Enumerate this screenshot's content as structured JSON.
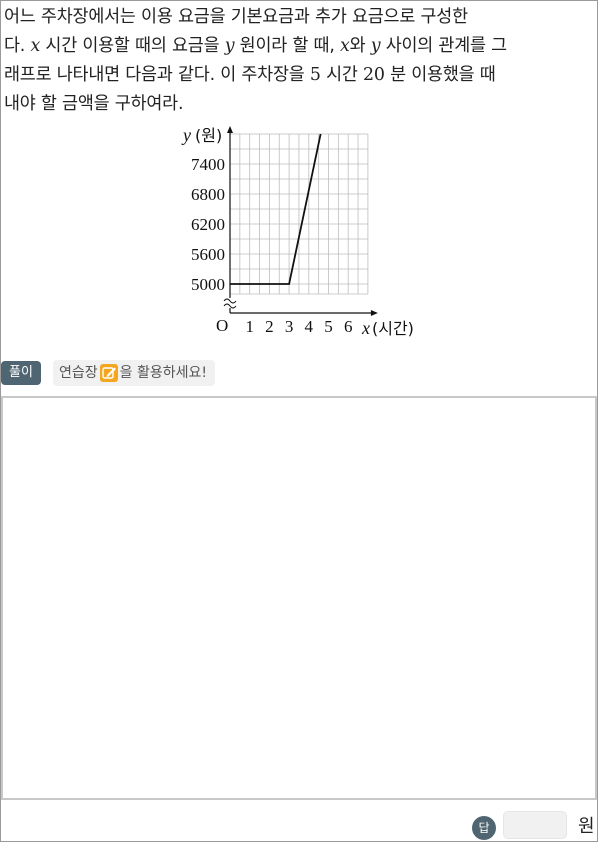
{
  "question": {
    "line1": "어느 주차장에서는 이용 요금을 기본요금과 추가 요금으로 구성한",
    "line2_a": "다.",
    "line2_var_x": "x",
    "line2_b": "시간 이용할 때의 요금을",
    "line2_var_y": "y",
    "line2_c": "원이라 할 때,",
    "line2_var_x2": "x",
    "line2_d": "와",
    "line2_var_y2": "y",
    "line2_e": "사이의 관계를 그",
    "line3_a": "래프로 나타내면 다음과 같다. 이 주차장을",
    "line3_num1": "5",
    "line3_b": "시간",
    "line3_num2": "20",
    "line3_c": "분 이용했을 때",
    "line4": "내야 할 금액을 구하여라."
  },
  "chart_data": {
    "type": "line",
    "xlabel_var": "x",
    "xlabel_unit": "(시간)",
    "ylabel_var": "y",
    "ylabel_unit": "(원)",
    "origin_label": "O",
    "x_ticks": [
      "1",
      "2",
      "3",
      "4",
      "5",
      "6"
    ],
    "y_ticks": [
      "5000",
      "5600",
      "6200",
      "6800",
      "7400"
    ],
    "y_tick_values": [
      5000,
      5600,
      6200,
      6800,
      7400
    ],
    "xlim": [
      0,
      7
    ],
    "ylim": [
      5000,
      8000
    ],
    "axis_break": true,
    "grid": true,
    "series": [
      {
        "x": [
          0,
          3,
          4.6
        ],
        "y": [
          5000,
          5000,
          8000
        ]
      }
    ]
  },
  "solve_label": "풀이",
  "hint": {
    "before": "연습장",
    "after": "을 활용하세요!"
  },
  "icons": {
    "hint": "pencil-icon"
  },
  "answer": {
    "badge": "답",
    "value": "",
    "unit": "원"
  }
}
